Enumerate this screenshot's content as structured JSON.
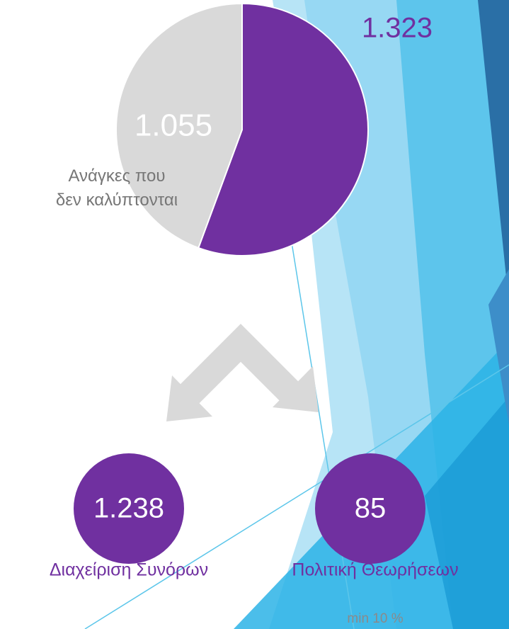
{
  "chart_data": {
    "type": "pie",
    "categories": [
      null,
      "Ανάγκες που\nδεν καλύπτονται"
    ],
    "values": [
      1323,
      1055
    ],
    "value_labels": [
      "1.323",
      "1.055"
    ],
    "colors": [
      "#7030a0",
      "#d9d9d9"
    ],
    "label_colors": [
      "#7030a0",
      "#ffffff"
    ]
  },
  "split": {
    "items": [
      {
        "value": "1.238",
        "label": "Διαχείριση Συνόρων"
      },
      {
        "value": "85",
        "label": "Πολιτική Θεωρήσεων",
        "note": "min 10 %"
      }
    ]
  }
}
